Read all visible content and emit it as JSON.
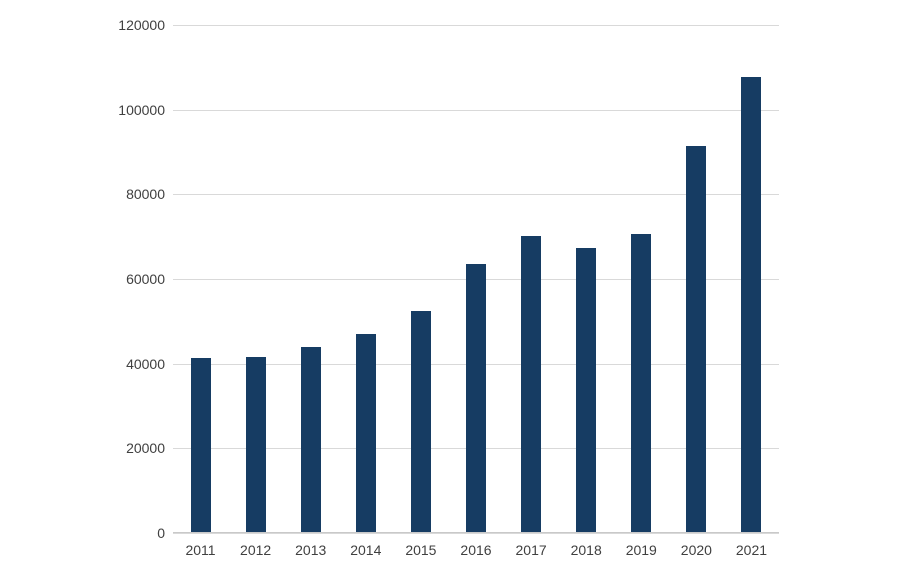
{
  "page": {
    "background_color": "#ffffff"
  },
  "chart_data": {
    "type": "bar",
    "title": "",
    "xlabel": "",
    "ylabel": "",
    "categories": [
      "2011",
      "2012",
      "2013",
      "2014",
      "2015",
      "2016",
      "2017",
      "2018",
      "2019",
      "2020",
      "2021"
    ],
    "values": [
      41300,
      41600,
      44000,
      47000,
      52400,
      63600,
      70200,
      67400,
      70600,
      91500,
      107700
    ],
    "ylim": [
      0,
      120000
    ],
    "yticks": [
      0,
      20000,
      40000,
      60000,
      80000,
      100000,
      120000
    ],
    "ytick_labels": [
      "0",
      "20000",
      "40000",
      "60000",
      "80000",
      "100000",
      "120000"
    ],
    "grid": "horizontal-on",
    "legend": "none",
    "bar_color": "#163c63",
    "gridline_color": "#d9d9d9",
    "axis_line_color": "#c9c9c9",
    "tick_label_color": "#404040"
  }
}
